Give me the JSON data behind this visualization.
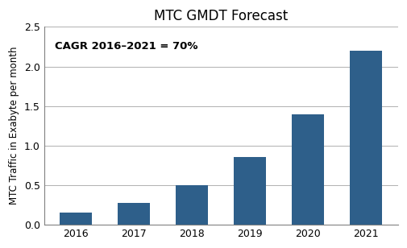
{
  "title": "MTC GMDT Forecast",
  "categories": [
    "2016",
    "2017",
    "2018",
    "2019",
    "2020",
    "2021"
  ],
  "values": [
    0.15,
    0.28,
    0.5,
    0.86,
    1.4,
    2.2
  ],
  "bar_color": "#2e5f8a",
  "ylabel": "MTC Traffic in Exabyte per month",
  "ylim": [
    0,
    2.5
  ],
  "yticks": [
    0,
    0.5,
    1.0,
    1.5,
    2.0,
    2.5
  ],
  "annotation": "CAGR 2016–2021 = 70%",
  "title_fontsize": 12,
  "label_fontsize": 8.5,
  "tick_fontsize": 9,
  "annotation_fontsize": 9.5,
  "background_color": "#ffffff",
  "bar_width": 0.55,
  "grid_color": "#b0b0b0",
  "spine_color": "#808080"
}
